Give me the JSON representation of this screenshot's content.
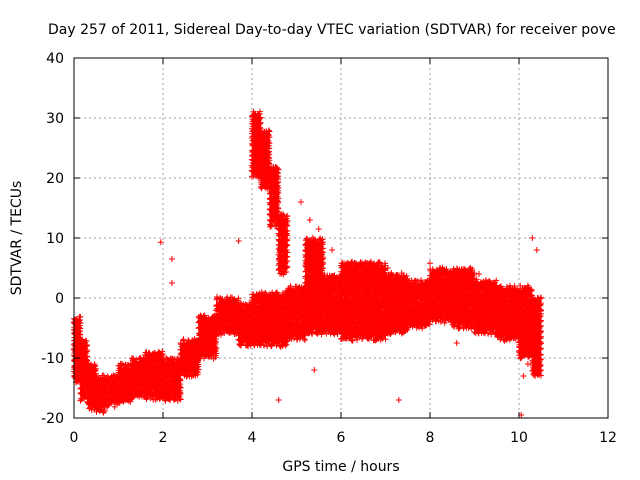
{
  "chart_data": {
    "type": "scatter",
    "title": "Day 257 of 2011, Sidereal Day-to-day VTEC variation (SDTVAR) for receiver pove",
    "xlabel": "GPS time / hours",
    "ylabel": "SDTVAR / TECUs",
    "xlim": [
      0,
      12
    ],
    "ylim": [
      -20,
      40
    ],
    "xticks": [
      "0",
      "2",
      "4",
      "6",
      "8",
      "10",
      "12"
    ],
    "yticks": [
      "-20",
      "-10",
      "0",
      "10",
      "20",
      "30",
      "40"
    ],
    "grid": true,
    "marker": "+",
    "color": "#ff0000",
    "series": [
      {
        "name": "SDTVAR",
        "bands": [
          {
            "x": [
              0.0,
              0.15
            ],
            "y": [
              -14,
              -3
            ]
          },
          {
            "x": [
              0.15,
              0.3
            ],
            "y": [
              -17,
              -7
            ]
          },
          {
            "x": [
              0.3,
              0.5
            ],
            "y": [
              -18.5,
              -11
            ]
          },
          {
            "x": [
              0.5,
              0.7
            ],
            "y": [
              -19,
              -13
            ]
          },
          {
            "x": [
              0.7,
              1.0
            ],
            "y": [
              -18,
              -13
            ]
          },
          {
            "x": [
              1.0,
              1.3
            ],
            "y": [
              -17.5,
              -11
            ]
          },
          {
            "x": [
              1.3,
              1.6
            ],
            "y": [
              -16.5,
              -10
            ]
          },
          {
            "x": [
              1.6,
              2.0
            ],
            "y": [
              -17,
              -9
            ]
          },
          {
            "x": [
              2.0,
              2.4
            ],
            "y": [
              -17,
              -10
            ]
          },
          {
            "x": [
              2.4,
              2.8
            ],
            "y": [
              -13,
              -7
            ]
          },
          {
            "x": [
              2.8,
              3.2
            ],
            "y": [
              -10,
              -3
            ]
          },
          {
            "x": [
              3.2,
              3.7
            ],
            "y": [
              -6,
              0
            ]
          },
          {
            "x": [
              3.7,
              4.0
            ],
            "y": [
              -8,
              -1
            ]
          },
          {
            "x": [
              4.0,
              4.2
            ],
            "y": [
              20,
              31
            ]
          },
          {
            "x": [
              4.2,
              4.4
            ],
            "y": [
              18,
              28
            ]
          },
          {
            "x": [
              4.4,
              4.6
            ],
            "y": [
              12,
              22
            ]
          },
          {
            "x": [
              4.6,
              4.8
            ],
            "y": [
              4,
              14
            ]
          },
          {
            "x": [
              4.0,
              4.8
            ],
            "y": [
              -8,
              1
            ]
          },
          {
            "x": [
              4.8,
              5.2
            ],
            "y": [
              -7,
              2
            ]
          },
          {
            "x": [
              5.2,
              5.6
            ],
            "y": [
              -6,
              10
            ]
          },
          {
            "x": [
              5.6,
              6.0
            ],
            "y": [
              -6,
              4
            ]
          },
          {
            "x": [
              6.0,
              7.0
            ],
            "y": [
              -7,
              6
            ]
          },
          {
            "x": [
              7.0,
              7.5
            ],
            "y": [
              -6,
              4
            ]
          },
          {
            "x": [
              7.5,
              8.0
            ],
            "y": [
              -5,
              3
            ]
          },
          {
            "x": [
              8.0,
              8.5
            ],
            "y": [
              -4,
              5
            ]
          },
          {
            "x": [
              8.5,
              9.0
            ],
            "y": [
              -5,
              5
            ]
          },
          {
            "x": [
              9.0,
              9.5
            ],
            "y": [
              -6,
              3
            ]
          },
          {
            "x": [
              9.5,
              10.0
            ],
            "y": [
              -7,
              2
            ]
          },
          {
            "x": [
              10.0,
              10.3
            ],
            "y": [
              -10,
              2
            ]
          },
          {
            "x": [
              10.3,
              10.5
            ],
            "y": [
              -13,
              0
            ]
          }
        ],
        "outliers": [
          [
            1.95,
            9.3
          ],
          [
            2.2,
            6.5
          ],
          [
            2.2,
            2.5
          ],
          [
            3.7,
            9.5
          ],
          [
            4.15,
            25
          ],
          [
            4.6,
            -17
          ],
          [
            4.8,
            -2
          ],
          [
            5.1,
            16
          ],
          [
            5.3,
            13
          ],
          [
            5.4,
            -12
          ],
          [
            5.5,
            11.5
          ],
          [
            5.8,
            8
          ],
          [
            7.05,
            5
          ],
          [
            7.3,
            -17
          ],
          [
            8.0,
            5.8
          ],
          [
            8.6,
            -7.5
          ],
          [
            9.1,
            4
          ],
          [
            10.05,
            -19.5
          ],
          [
            10.3,
            10
          ],
          [
            10.4,
            8
          ],
          [
            10.1,
            -13
          ],
          [
            10.2,
            -11
          ]
        ]
      }
    ]
  }
}
